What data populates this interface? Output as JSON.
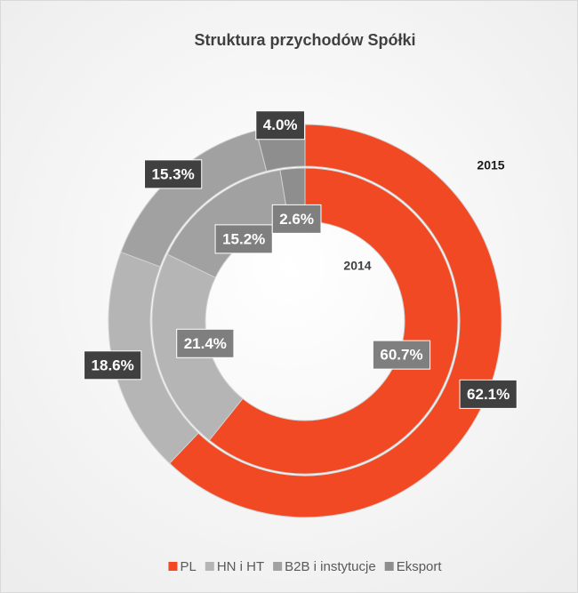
{
  "chart_data": {
    "type": "donut",
    "title": "Struktura przychodów Spółki",
    "categories": [
      "PL",
      "HN i HT",
      "B2B i instytucje",
      "Eksport"
    ],
    "colors": [
      "#f04923",
      "#b5b5b5",
      "#a1a1a1",
      "#8e8e8e"
    ],
    "series": [
      {
        "name": "2015",
        "values": [
          62.1,
          18.6,
          15.3,
          4.0
        ],
        "value_labels": [
          "62.1%",
          "18.6%",
          "15.3%",
          "4.0%"
        ]
      },
      {
        "name": "2014",
        "values": [
          60.7,
          21.4,
          15.2,
          2.6
        ],
        "value_labels": [
          "60.7%",
          "21.4%",
          "15.2%",
          "2.6%"
        ]
      }
    ],
    "legend": "bottom"
  }
}
